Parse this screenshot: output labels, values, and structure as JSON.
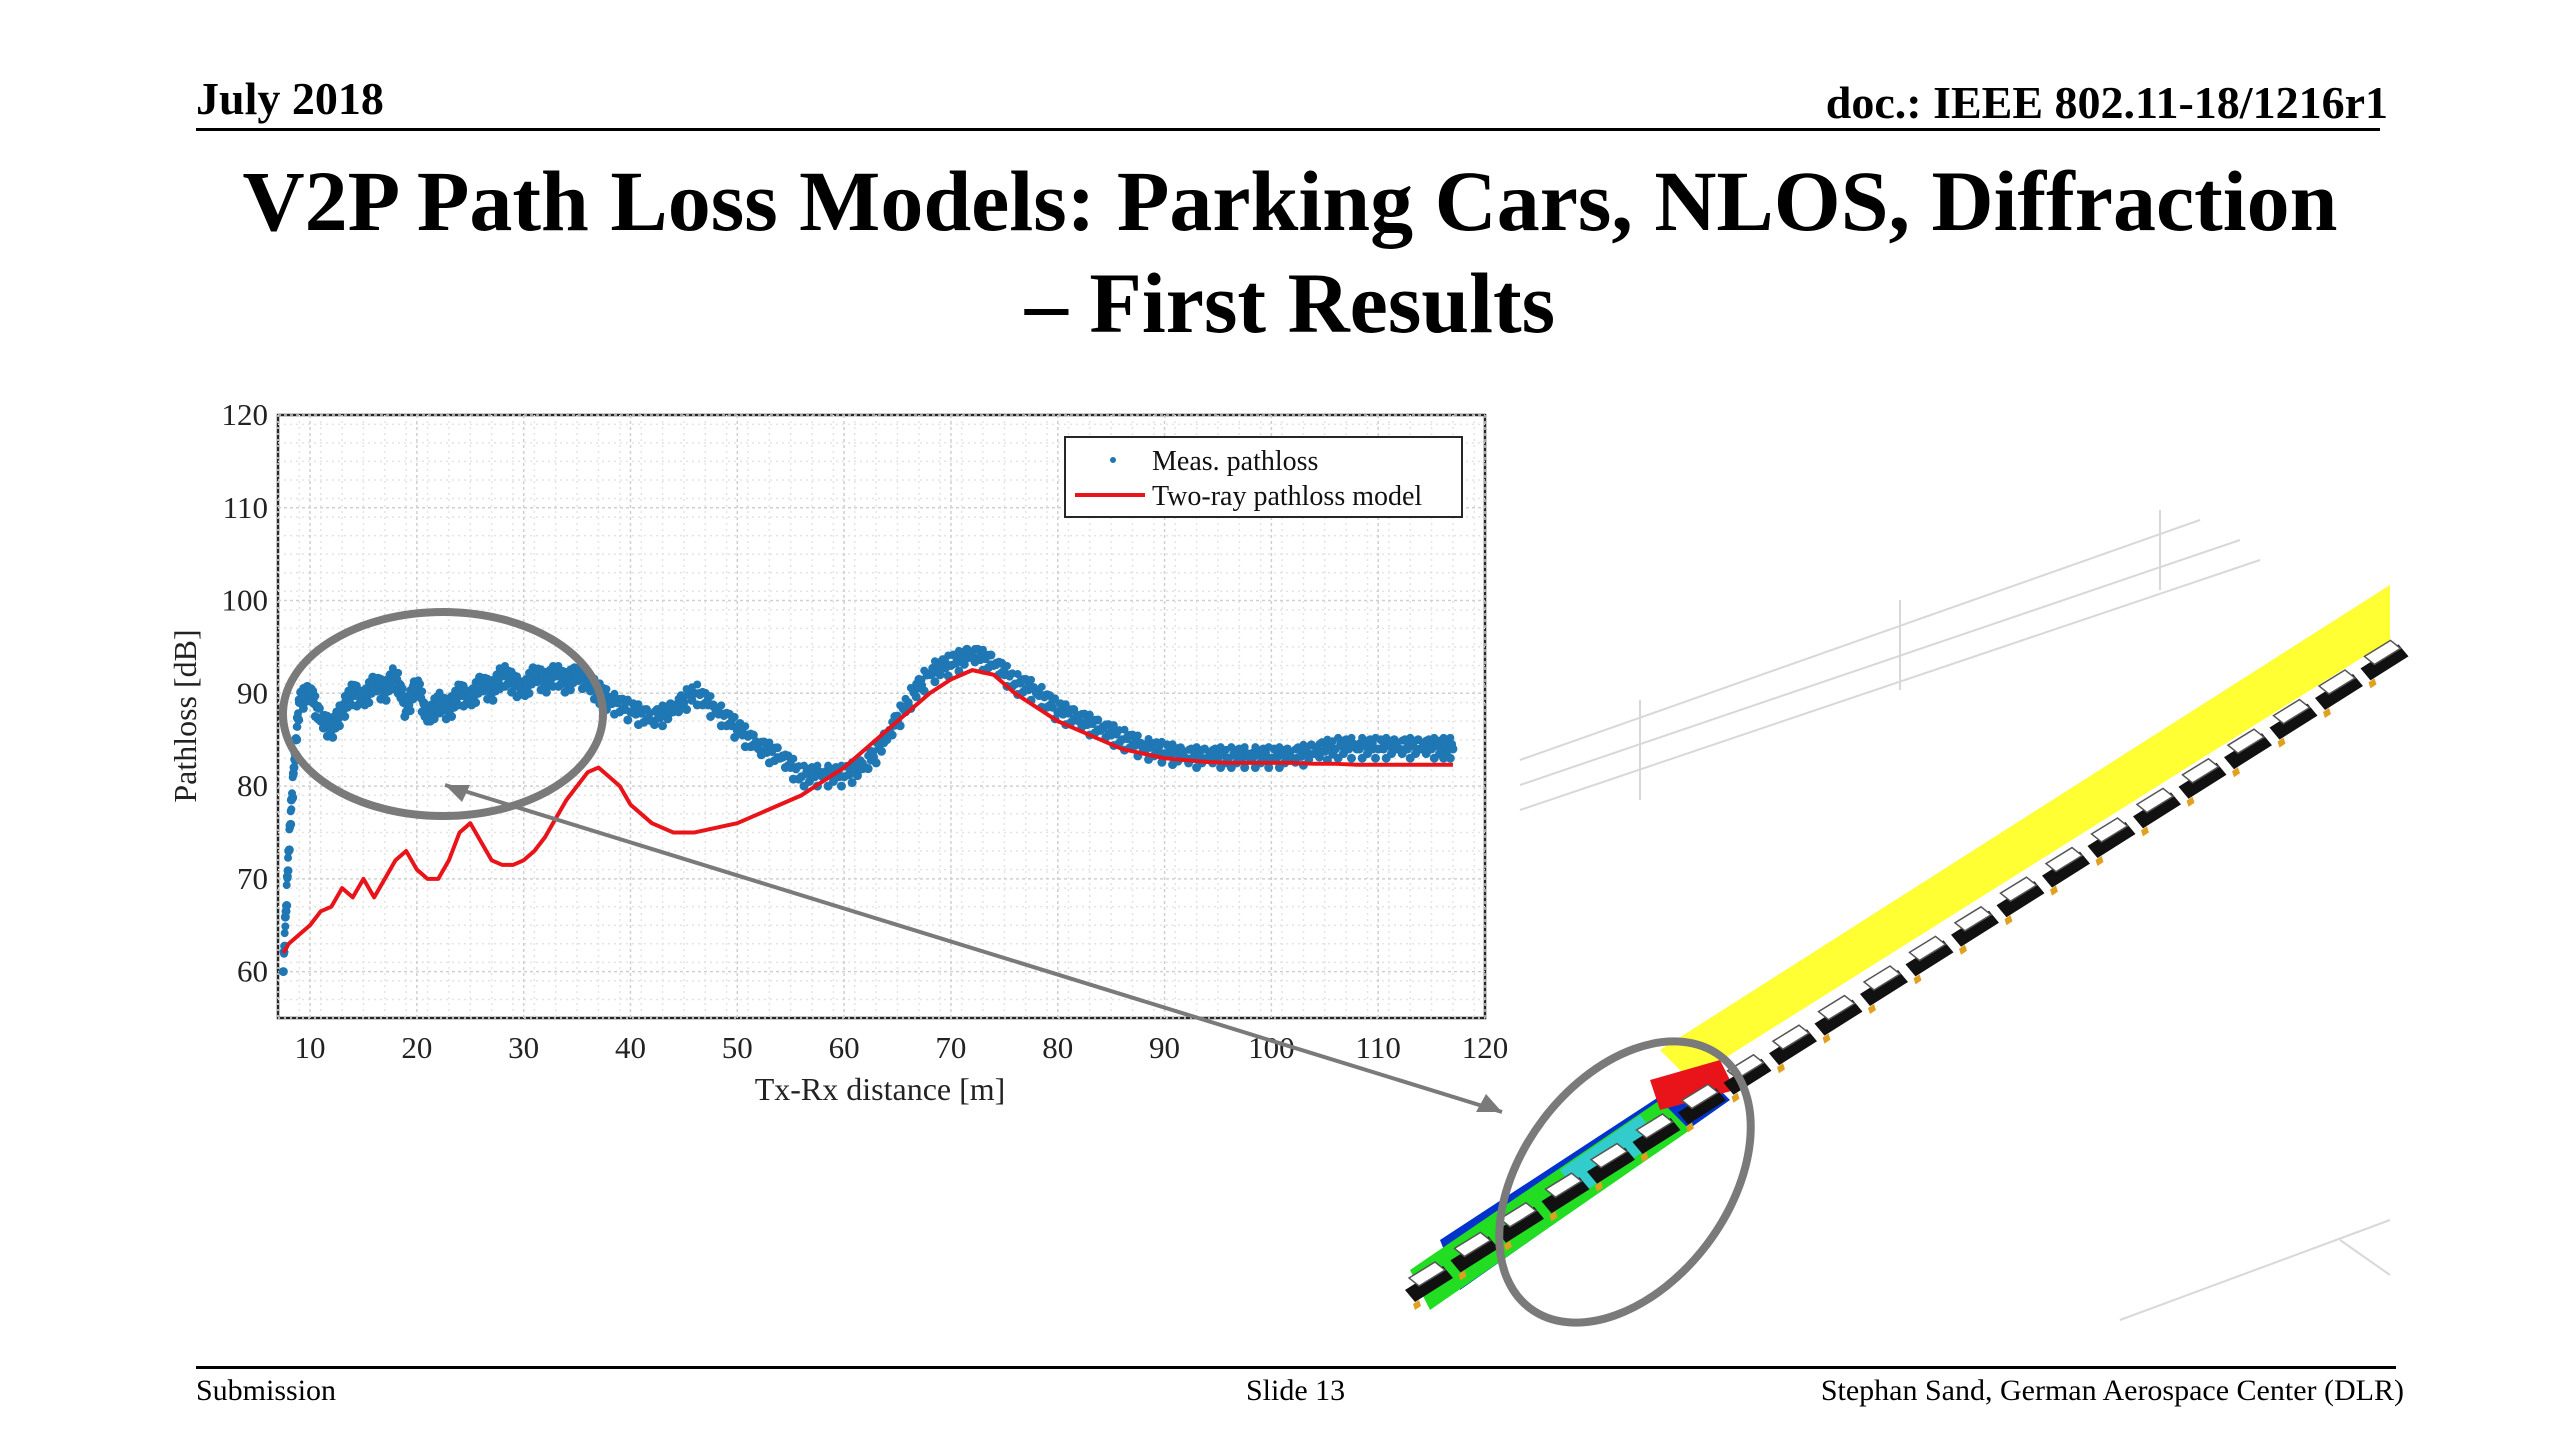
{
  "header": {
    "date": "July 2018",
    "doc": "doc.: IEEE 802.11-18/1216r1"
  },
  "title": {
    "line1": "V2P Path Loss Models: Parking Cars, NLOS, Diffraction",
    "line2": "– First Results"
  },
  "footer": {
    "left": "Submission",
    "center": "Slide 13",
    "right": "Stephan Sand, German Aerospace Center (DLR)"
  },
  "colors": {
    "measured": "#1f77b4",
    "model": "#e8141a",
    "ellipse": "#7a7a7a",
    "street": "#ffff33"
  },
  "chart_data": {
    "type": "line",
    "xlabel": "Tx-Rx distance [m]",
    "ylabel": "Pathloss [dB]",
    "xlim": [
      7,
      120
    ],
    "ylim": [
      55,
      120
    ],
    "xticks": [
      10,
      20,
      30,
      40,
      50,
      60,
      70,
      80,
      90,
      100,
      110,
      120
    ],
    "yticks": [
      60,
      70,
      80,
      90,
      100,
      110,
      120
    ],
    "grid": true,
    "legend_position": "top-right",
    "series": [
      {
        "name": "Meas. pathloss",
        "style": "dots",
        "x": [
          7.5,
          8,
          8.5,
          9,
          10,
          11,
          12,
          13,
          14,
          15,
          16,
          17,
          18,
          19,
          20,
          21,
          22,
          23,
          24,
          25,
          26,
          27,
          28,
          29,
          30,
          31,
          32,
          33,
          34,
          35,
          36,
          37,
          38,
          40,
          42,
          44,
          46,
          48,
          50,
          52,
          54,
          56,
          58,
          60,
          62,
          64,
          66,
          68,
          70,
          72,
          74,
          76,
          78,
          80,
          82,
          84,
          86,
          88,
          90,
          92,
          94,
          96,
          98,
          100,
          102,
          104,
          106,
          108,
          110,
          112,
          114,
          116,
          117
        ],
        "y": [
          60,
          73,
          82,
          89,
          90,
          87,
          86,
          88,
          90,
          89,
          91,
          90,
          92,
          88,
          91,
          87,
          89,
          88,
          90,
          89,
          91,
          90,
          92,
          91,
          90,
          92,
          91,
          92,
          91,
          92,
          91,
          90,
          89,
          88,
          87,
          88,
          90,
          88,
          86,
          84,
          83,
          81,
          81,
          81,
          82,
          85,
          89,
          92,
          93,
          94,
          93,
          91,
          90,
          88,
          87,
          86,
          85,
          84,
          83.5,
          83,
          83,
          83,
          83,
          83,
          83,
          83.5,
          84,
          84,
          84,
          84,
          84,
          84,
          84
        ]
      },
      {
        "name": "Two-ray pathloss model",
        "style": "line",
        "x": [
          7.5,
          8,
          9,
          10,
          11,
          12,
          13,
          14,
          15,
          16,
          17,
          18,
          19,
          20,
          21,
          22,
          23,
          24,
          25,
          26,
          27,
          28,
          29,
          30,
          31,
          32,
          33,
          34,
          35,
          36,
          37,
          38,
          39,
          40,
          42,
          44,
          46,
          48,
          50,
          52,
          54,
          56,
          58,
          60,
          62,
          64,
          66,
          68,
          70,
          72,
          74,
          76,
          78,
          80,
          82,
          84,
          86,
          88,
          90,
          92,
          94,
          96,
          98,
          100,
          102,
          104,
          106,
          108,
          110,
          112,
          114,
          116,
          117
        ],
        "y": [
          62,
          63,
          64,
          65,
          66.5,
          67,
          69,
          68,
          70,
          68,
          70,
          72,
          73,
          71,
          70,
          70,
          72,
          75,
          76,
          74,
          72,
          71.5,
          71.5,
          72,
          73,
          74.5,
          76.5,
          78.5,
          80,
          81.5,
          82,
          81,
          80,
          78,
          76,
          75,
          75,
          75.5,
          76,
          77,
          78,
          79,
          80.5,
          82,
          84,
          86,
          88,
          90,
          91.5,
          92.5,
          92,
          90,
          88.5,
          87,
          86,
          85,
          84,
          83.5,
          83,
          82.8,
          82.6,
          82.5,
          82.5,
          82.5,
          82.5,
          82.4,
          82.4,
          82.3,
          82.3,
          82.3,
          82.3,
          82.3,
          82.3
        ]
      }
    ]
  }
}
